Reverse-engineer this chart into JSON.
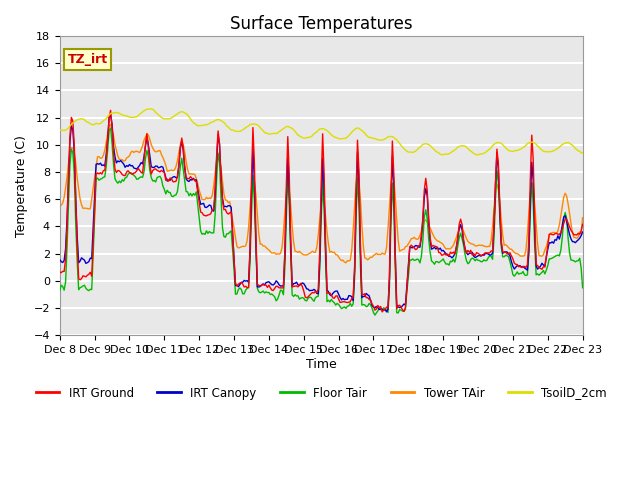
{
  "title": "Surface Temperatures",
  "xlabel": "Time",
  "ylabel": "Temperature (C)",
  "ylim": [
    -4,
    18
  ],
  "yticks": [
    -4,
    -2,
    0,
    2,
    4,
    6,
    8,
    10,
    12,
    14,
    16,
    18
  ],
  "annotation_text": "TZ_irt",
  "series_colors": {
    "IRT Ground": "#ff0000",
    "IRT Canopy": "#0000cc",
    "Floor Tair": "#00bb00",
    "Tower TAir": "#ff8800",
    "TsoilD_2cm": "#dddd00"
  },
  "background_color": "#e8e8e8",
  "grid_color": "#ffffff",
  "title_fontsize": 12,
  "label_fontsize": 9,
  "tick_fontsize": 8,
  "n_points": 361
}
